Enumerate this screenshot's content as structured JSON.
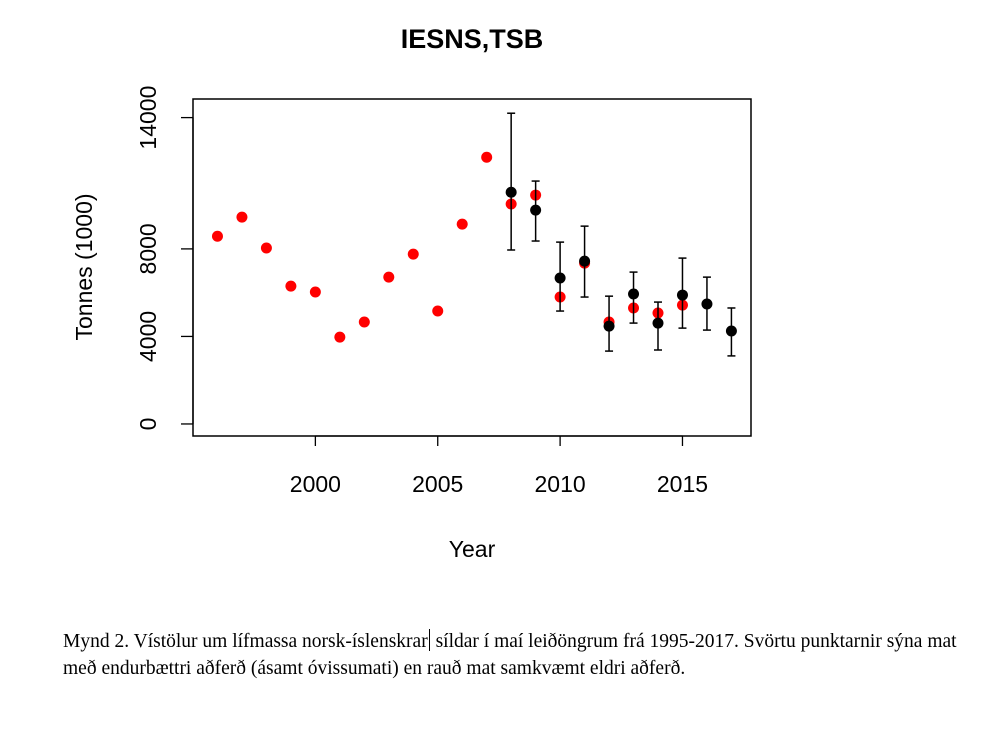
{
  "chart_data": {
    "type": "scatter",
    "title": "IESNS,TSB",
    "xlabel": "Year",
    "ylabel": "Tonnes (1000)",
    "xlim": [
      1995.0,
      2017.8
    ],
    "ylim": [
      -550,
      14850
    ],
    "xticks": [
      2000,
      2005,
      2010,
      2015
    ],
    "yticks": [
      0,
      4000,
      8000,
      14000
    ],
    "grid": false,
    "series": [
      {
        "color": "#ff0000",
        "x": [
          1996,
          1997,
          1998,
          1999,
          2000,
          2001,
          2002,
          2003,
          2004,
          2005,
          2006,
          2007,
          2008,
          2009,
          2010,
          2011,
          2012,
          2013,
          2014,
          2015
        ],
        "y": [
          8580,
          9450,
          8040,
          6300,
          6030,
          3970,
          4660,
          6710,
          7760,
          5160,
          9130,
          12190,
          10050,
          10460,
          5800,
          7350,
          4660,
          5300,
          5070,
          5430
        ]
      },
      {
        "color": "#000000",
        "x": [
          2008,
          2009,
          2010,
          2011,
          2012,
          2013,
          2014,
          2015,
          2016,
          2017
        ],
        "y": [
          10590,
          9770,
          6670,
          7440,
          4470,
          5940,
          4610,
          5890,
          5480,
          4250
        ],
        "upper": [
          14200,
          11100,
          8310,
          9040,
          5840,
          6940,
          5570,
          7580,
          6710,
          5300
        ],
        "lower": [
          7950,
          8360,
          5160,
          5800,
          3330,
          4610,
          3380,
          4380,
          4290,
          3110
        ]
      }
    ]
  },
  "caption": {
    "part1": "Mynd 2. Vístölur um lífmassa norsk-íslenskrar",
    "part2": " síldar í maí leiðöngrum frá 1995-2017. Svörtu punktarnir sýna mat með endurbættri aðferð (ásamt óvissumati) en rauð mat samkvæmt eldri aðferð."
  }
}
